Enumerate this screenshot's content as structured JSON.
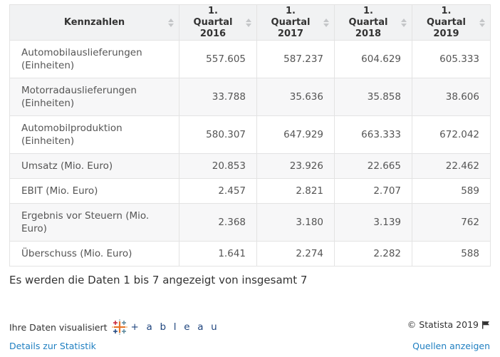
{
  "table": {
    "columns": [
      "Kennzahlen",
      "1. Quartal 2016",
      "1. Quartal 2017",
      "1. Quartal 2018",
      "1. Quartal 2019"
    ],
    "rows": [
      {
        "label": "Automobilauslieferungen (Einheiten)",
        "values": [
          "557.605",
          "587.237",
          "604.629",
          "605.333"
        ]
      },
      {
        "label": "Motorradauslieferungen (Einheiten)",
        "values": [
          "33.788",
          "35.636",
          "35.858",
          "38.606"
        ]
      },
      {
        "label": "Automobilproduktion (Einheiten)",
        "values": [
          "580.307",
          "647.929",
          "663.333",
          "672.042"
        ]
      },
      {
        "label": "Umsatz (Mio. Euro)",
        "values": [
          "20.853",
          "23.926",
          "22.665",
          "22.462"
        ]
      },
      {
        "label": "EBIT (Mio. Euro)",
        "values": [
          "2.457",
          "2.821",
          "2.707",
          "589"
        ]
      },
      {
        "label": "Ergebnis vor Steuern (Mio. Euro)",
        "values": [
          "2.368",
          "3.180",
          "3.139",
          "762"
        ]
      },
      {
        "label": "Überschuss (Mio. Euro)",
        "values": [
          "1.641",
          "2.274",
          "2.282",
          "588"
        ]
      }
    ]
  },
  "info_text": "Es werden die Daten 1 bis 7 angezeigt von insgesamt 7",
  "footer": {
    "visualized_by": "Ihre Daten visualisiert",
    "tableau_wordmark": "+ a b l e a u",
    "copyright": "© Statista 2019",
    "details_link": "Details zur Statistik",
    "sources_link": "Quellen anzeigen"
  },
  "icons": {
    "sort": "sort-icon",
    "tableau": "tableau-logo-icon",
    "flag": "flag-icon"
  },
  "colors": {
    "header_bg": "#f1f2f3",
    "border": "#e3e3e3",
    "link": "#1f7fc1",
    "tableau_blue": "#1f457e"
  }
}
